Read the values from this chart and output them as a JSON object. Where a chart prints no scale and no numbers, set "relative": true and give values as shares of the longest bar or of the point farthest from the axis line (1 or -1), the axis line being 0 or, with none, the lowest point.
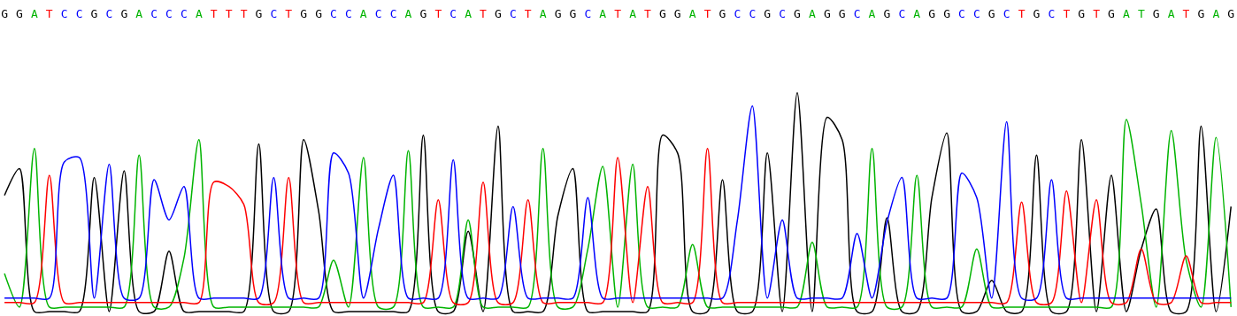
{
  "chart_data": {
    "type": "line",
    "relative": true,
    "categories": [
      "G",
      "G",
      "A",
      "T",
      "C",
      "C",
      "G",
      "C",
      "G",
      "A",
      "C",
      "C",
      "C",
      "A",
      "T",
      "T",
      "T",
      "G",
      "C",
      "T",
      "G",
      "G",
      "C",
      "C",
      "A",
      "C",
      "C",
      "A",
      "G",
      "T",
      "C",
      "A",
      "T",
      "G",
      "C",
      "T",
      "A",
      "G",
      "G",
      "C",
      "A",
      "T",
      "A",
      "T",
      "G",
      "G",
      "A",
      "T",
      "G",
      "C",
      "C",
      "G",
      "C",
      "G",
      "A",
      "G",
      "G",
      "C",
      "A",
      "G",
      "C",
      "A",
      "G",
      "G",
      "C",
      "C",
      "G",
      "C",
      "T",
      "G",
      "C",
      "T",
      "G",
      "T",
      "G",
      "A",
      "T",
      "G",
      "A",
      "T",
      "G",
      "A",
      "G"
    ],
    "series": [
      {
        "color": "#000000",
        "values": [
          0.54,
          0.66,
          0.02,
          0.02,
          0.02,
          0.02,
          0.62,
          0.02,
          0.65,
          0.02,
          0.02,
          0.29,
          0.02,
          0.02,
          0.02,
          0.02,
          0.02,
          0.77,
          0.02,
          0.02,
          0.79,
          0.47,
          0.02,
          0.02,
          0.02,
          0.02,
          0.02,
          0.02,
          0.81,
          0.02,
          0.02,
          0.38,
          0.02,
          0.85,
          0.02,
          0.02,
          0.02,
          0.45,
          0.66,
          0.02,
          0.02,
          0.02,
          0.02,
          0.02,
          0.81,
          0.73,
          0.02,
          0.02,
          0.61,
          0.02,
          0.02,
          0.73,
          0.02,
          1,
          0.02,
          0.89,
          0.79,
          0.02,
          0.02,
          0.44,
          0.02,
          0.02,
          0.53,
          0.82,
          0.02,
          0.02,
          0.16,
          0.02,
          0.02,
          0.72,
          0.02,
          0.02,
          0.79,
          0.02,
          0.63,
          0.02,
          0.3,
          0.48,
          0.02,
          0.02,
          0.85,
          0.02,
          0.49
        ]
      },
      {
        "color": "#00b400",
        "values": [
          0.19,
          0.04,
          0.75,
          0.04,
          0.04,
          0.04,
          0.04,
          0.04,
          0.04,
          0.72,
          0.04,
          0.04,
          0.26,
          0.79,
          0.04,
          0.04,
          0.04,
          0.04,
          0.04,
          0.04,
          0.04,
          0.04,
          0.25,
          0.04,
          0.71,
          0.04,
          0.04,
          0.74,
          0.04,
          0.04,
          0.04,
          0.43,
          0.04,
          0.04,
          0.04,
          0.04,
          0.75,
          0.04,
          0.04,
          0.3,
          0.67,
          0.04,
          0.68,
          0.04,
          0.04,
          0.04,
          0.32,
          0.04,
          0.04,
          0.04,
          0.04,
          0.04,
          0.04,
          0.04,
          0.33,
          0.04,
          0.04,
          0.04,
          0.75,
          0.04,
          0.04,
          0.63,
          0.04,
          0.04,
          0.04,
          0.3,
          0.04,
          0.04,
          0.04,
          0.04,
          0.04,
          0.04,
          0.04,
          0.04,
          0.04,
          0.88,
          0.5,
          0.04,
          0.83,
          0.25,
          0.04,
          0.8,
          0.04
        ]
      },
      {
        "color": "#ff0000",
        "values": [
          0.06,
          0.06,
          0.06,
          0.63,
          0.06,
          0.06,
          0.06,
          0.06,
          0.06,
          0.06,
          0.06,
          0.06,
          0.06,
          0.06,
          0.6,
          0.58,
          0.5,
          0.06,
          0.06,
          0.62,
          0.06,
          0.06,
          0.06,
          0.06,
          0.06,
          0.06,
          0.06,
          0.06,
          0.06,
          0.52,
          0.06,
          0.06,
          0.6,
          0.06,
          0.06,
          0.52,
          0.06,
          0.06,
          0.06,
          0.06,
          0.06,
          0.71,
          0.06,
          0.58,
          0.06,
          0.06,
          0.06,
          0.75,
          0.06,
          0.06,
          0.06,
          0.06,
          0.06,
          0.06,
          0.06,
          0.06,
          0.06,
          0.06,
          0.06,
          0.06,
          0.06,
          0.06,
          0.06,
          0.06,
          0.06,
          0.06,
          0.06,
          0.06,
          0.51,
          0.06,
          0.06,
          0.56,
          0.06,
          0.52,
          0.06,
          0.06,
          0.3,
          0.06,
          0.06,
          0.27,
          0.06,
          0.06,
          0.06
        ]
      },
      {
        "color": "#0000ff",
        "values": [
          0.08,
          0.08,
          0.08,
          0.08,
          0.69,
          0.71,
          0.08,
          0.68,
          0.08,
          0.08,
          0.61,
          0.43,
          0.58,
          0.08,
          0.08,
          0.08,
          0.08,
          0.08,
          0.62,
          0.08,
          0.08,
          0.08,
          0.73,
          0.64,
          0.08,
          0.39,
          0.63,
          0.08,
          0.08,
          0.08,
          0.7,
          0.08,
          0.08,
          0.08,
          0.49,
          0.08,
          0.08,
          0.08,
          0.08,
          0.53,
          0.08,
          0.08,
          0.08,
          0.08,
          0.08,
          0.08,
          0.08,
          0.08,
          0.08,
          0.43,
          0.94,
          0.08,
          0.43,
          0.08,
          0.08,
          0.08,
          0.08,
          0.37,
          0.08,
          0.42,
          0.62,
          0.08,
          0.08,
          0.08,
          0.64,
          0.53,
          0.08,
          0.87,
          0.08,
          0.08,
          0.61,
          0.08,
          0.08,
          0.08,
          0.08,
          0.08,
          0.08,
          0.08,
          0.08,
          0.08,
          0.08,
          0.08,
          0.08
        ]
      }
    ]
  }
}
